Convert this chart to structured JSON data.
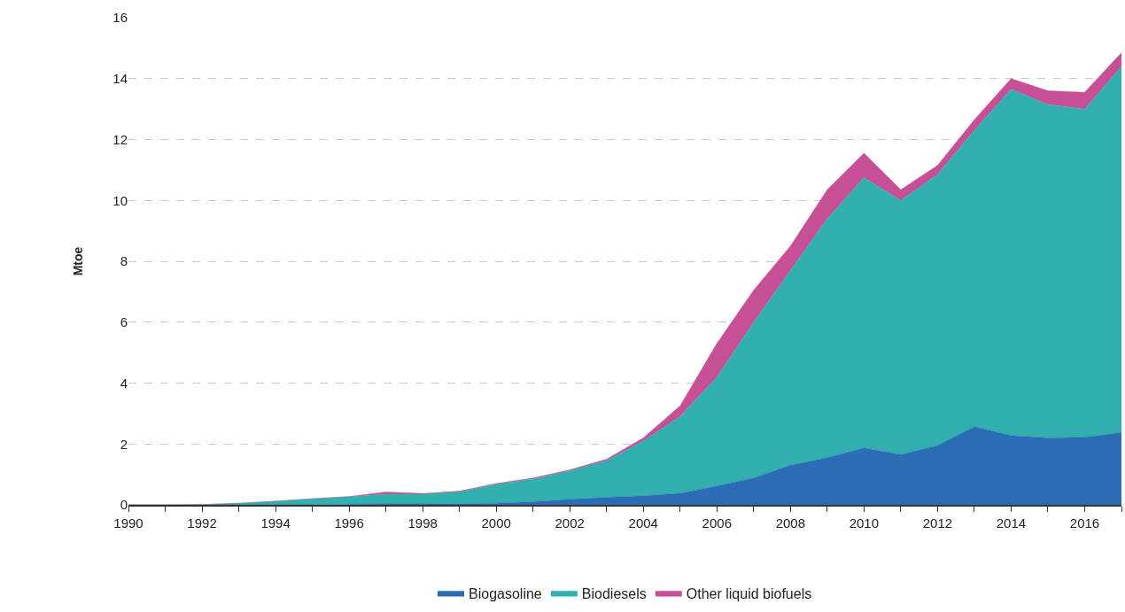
{
  "chart_data": {
    "type": "area",
    "stacked": true,
    "ylabel": "Mtoe",
    "x": [
      1990,
      1991,
      1992,
      1993,
      1994,
      1995,
      1996,
      1997,
      1998,
      1999,
      2000,
      2001,
      2002,
      2003,
      2004,
      2005,
      2006,
      2007,
      2008,
      2009,
      2010,
      2011,
      2012,
      2013,
      2014,
      2015,
      2016,
      2017
    ],
    "series": [
      {
        "name": "Biogasoline",
        "color": "#2a6db4",
        "values": [
          0,
          0,
          0,
          0,
          0,
          0,
          0.02,
          0.03,
          0.03,
          0.04,
          0.05,
          0.1,
          0.18,
          0.25,
          0.3,
          0.38,
          0.62,
          0.88,
          1.3,
          1.55,
          1.87,
          1.65,
          1.95,
          2.57,
          2.28,
          2.2,
          2.22,
          2.38
        ]
      },
      {
        "name": "Biodiesels",
        "color": "#32b0b0",
        "values": [
          0,
          0,
          0.01,
          0.05,
          0.12,
          0.2,
          0.25,
          0.32,
          0.32,
          0.39,
          0.63,
          0.75,
          0.94,
          1.2,
          1.8,
          2.52,
          3.58,
          5.12,
          6.4,
          7.85,
          8.88,
          8.35,
          8.9,
          9.73,
          11.37,
          10.95,
          10.78,
          12.02
        ]
      },
      {
        "name": "Other liquid biofuels",
        "color": "#c64f95",
        "values": [
          0,
          0,
          0,
          0,
          0,
          0,
          0,
          0.07,
          0.02,
          0.02,
          0.02,
          0.03,
          0.03,
          0.05,
          0.1,
          0.35,
          1.1,
          1.05,
          0.8,
          0.95,
          0.8,
          0.35,
          0.3,
          0.35,
          0.35,
          0.45,
          0.55,
          0.45
        ]
      }
    ],
    "xlim": [
      1990,
      2017
    ],
    "xticks": [
      1990,
      {
        "value": 1991,
        "label": null
      },
      1992,
      {
        "value": 1993,
        "label": null
      },
      1994,
      {
        "value": 1995,
        "label": null
      },
      1996,
      {
        "value": 1997,
        "label": null
      },
      1998,
      {
        "value": 1999,
        "label": null
      },
      2000,
      {
        "value": 2001,
        "label": null
      },
      2002,
      {
        "value": 2003,
        "label": null
      },
      2004,
      {
        "value": 2005,
        "label": null
      },
      2006,
      {
        "value": 2007,
        "label": null
      },
      2008,
      {
        "value": 2009,
        "label": null
      },
      2010,
      {
        "value": 2011,
        "label": null
      },
      2012,
      {
        "value": 2013,
        "label": null
      },
      2014,
      {
        "value": 2015,
        "label": null
      },
      2016,
      {
        "value": 2017,
        "label": null
      }
    ],
    "ylim": [
      0,
      16
    ],
    "yticks": [
      0,
      2,
      4,
      6,
      8,
      10,
      12,
      14,
      16
    ],
    "grid": "y",
    "legend": "bottom"
  }
}
